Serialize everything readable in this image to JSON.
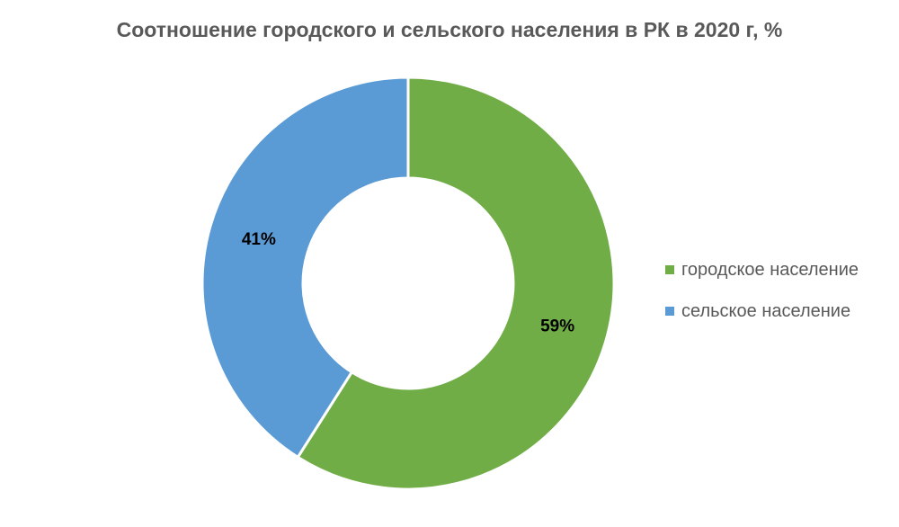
{
  "chart_data": {
    "type": "pie",
    "variant": "donut",
    "title": "Соотношение городского и сельского населения в РК в 2020 г, %",
    "slices": [
      {
        "name": "городское население",
        "value": 59,
        "label": "59%",
        "color": "#70AD47"
      },
      {
        "name": "сельское население",
        "value": 41,
        "label": "41%",
        "color": "#5B9BD5"
      }
    ],
    "legend_position": "right"
  }
}
